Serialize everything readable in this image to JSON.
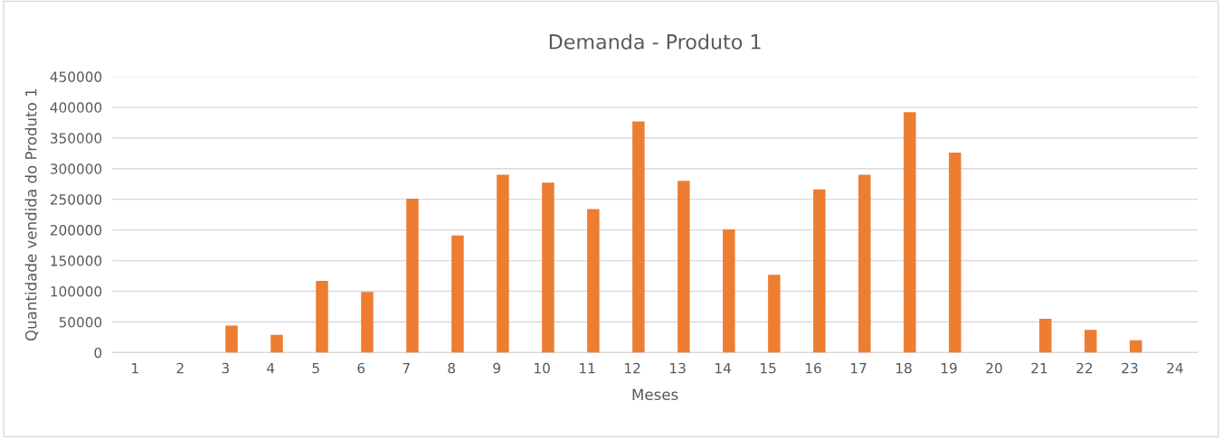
{
  "chart_data": {
    "type": "bar",
    "title": "Demanda - Produto 1",
    "xlabel": "Meses",
    "ylabel": "Quantidade vendida do Produto 1",
    "categories": [
      "1",
      "2",
      "3",
      "4",
      "5",
      "6",
      "7",
      "8",
      "9",
      "10",
      "11",
      "12",
      "13",
      "14",
      "15",
      "16",
      "17",
      "18",
      "19",
      "20",
      "21",
      "22",
      "23",
      "24"
    ],
    "series": [
      {
        "color": "#a5a5a5",
        "values": [
          1,
          2,
          3,
          4,
          5,
          6,
          7,
          8,
          9,
          10,
          11,
          12,
          13,
          14,
          15,
          16,
          17,
          18,
          19,
          20,
          21,
          22,
          23,
          24
        ]
      },
      {
        "color": "#ed7d31",
        "values": [
          0,
          0,
          44000,
          29000,
          117000,
          99000,
          251000,
          191000,
          290000,
          277000,
          234000,
          377000,
          280000,
          201000,
          127000,
          266000,
          290000,
          392000,
          326000,
          0,
          55000,
          37000,
          20000,
          0
        ]
      }
    ],
    "ylim": [
      0,
      450000
    ],
    "yticks": [
      0,
      50000,
      100000,
      150000,
      200000,
      250000,
      300000,
      350000,
      400000,
      450000
    ],
    "grid": "y",
    "legend": false
  }
}
